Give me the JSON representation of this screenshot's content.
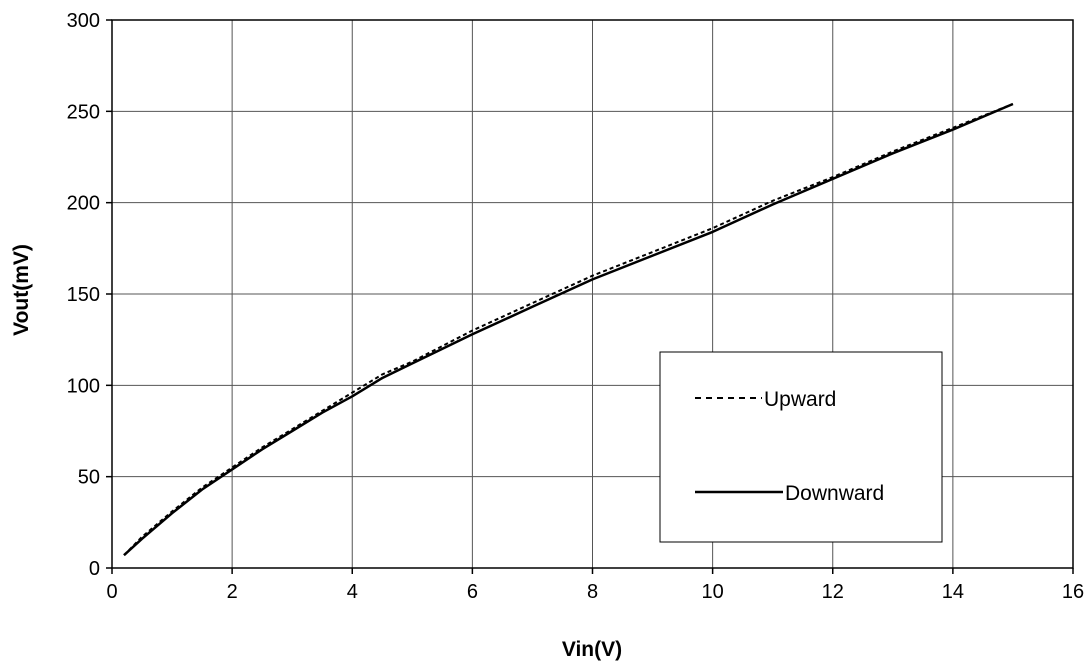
{
  "chart_data": {
    "type": "line",
    "title": "",
    "xlabel": "Vin(V)",
    "ylabel": "Vout(mV)",
    "xlim": [
      0,
      16
    ],
    "ylim": [
      0,
      300
    ],
    "x_ticks": [
      "0",
      "2",
      "4",
      "6",
      "8",
      "10",
      "12",
      "14",
      "16"
    ],
    "y_ticks": [
      "0",
      "50",
      "100",
      "150",
      "200",
      "250",
      "300"
    ],
    "grid": true,
    "legend_position": "lower-right",
    "series": [
      {
        "name": "Upward",
        "style": "dashed",
        "color": "#000000",
        "x": [
          0.2,
          0.5,
          1.0,
          1.5,
          2.0,
          2.5,
          3.0,
          3.5,
          4.0,
          4.5,
          5.0,
          6.0,
          7.0,
          8.0,
          9.0,
          10.0,
          11.0,
          12.0,
          13.0,
          14.0,
          15.0
        ],
        "y": [
          7,
          17,
          31,
          44,
          55,
          66,
          76,
          86,
          96,
          106,
          113,
          130,
          145,
          160,
          173,
          186,
          201,
          214,
          228,
          241,
          254
        ]
      },
      {
        "name": "Downward",
        "style": "solid",
        "color": "#000000",
        "x": [
          0.2,
          0.5,
          1.0,
          1.5,
          2.0,
          2.5,
          3.0,
          3.5,
          4.0,
          4.5,
          5.0,
          6.0,
          7.0,
          8.0,
          9.0,
          10.0,
          11.0,
          12.0,
          13.0,
          14.0,
          15.0
        ],
        "y": [
          7,
          16,
          30,
          43,
          54,
          65,
          75,
          85,
          94,
          104,
          112,
          128,
          143,
          158,
          171,
          184,
          199,
          213,
          227,
          240,
          254
        ]
      }
    ]
  }
}
